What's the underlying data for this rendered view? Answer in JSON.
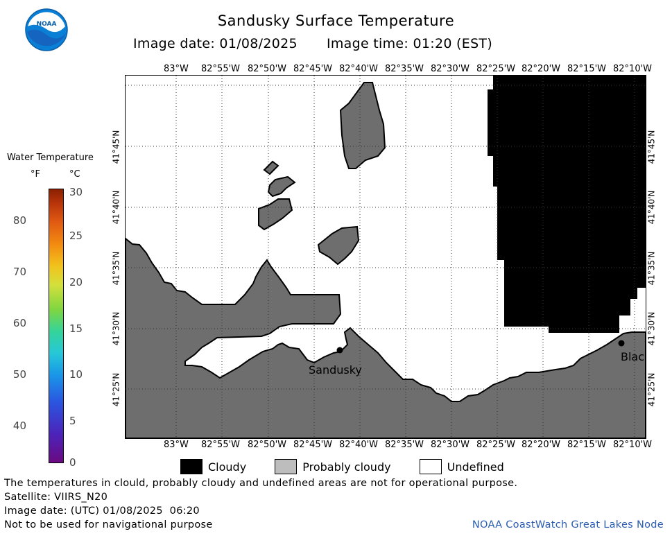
{
  "header": {
    "title": "Sandusky Surface Temperature",
    "image_date": "Image date: 01/08/2025",
    "image_time": "Image time: 01:20 (EST)"
  },
  "logo": {
    "text": "NOAA",
    "icon": "noaa-logo-icon"
  },
  "legend": {
    "title": "Water Temperature",
    "unit_f": "°F",
    "unit_c": "°C",
    "f_ticks": [
      "80",
      "70",
      "60",
      "50",
      "40"
    ],
    "c_ticks": [
      "30",
      "25",
      "20",
      "15",
      "10",
      "5",
      "0"
    ]
  },
  "map": {
    "lon_labels": [
      "83°W",
      "82°55'W",
      "82°50'W",
      "82°45'W",
      "82°40'W",
      "82°35'W",
      "82°30'W",
      "82°25'W",
      "82°20'W",
      "82°15'W",
      "82°10'W"
    ],
    "lat_labels": [
      "41°45'N",
      "41°40'N",
      "41°35'N",
      "41°30'N",
      "41°25'N"
    ],
    "cities": [
      {
        "name": "Sandusky"
      },
      {
        "name": "Blac"
      }
    ],
    "colors": {
      "cloudy": "#000000",
      "probably_cloudy": "#6e6e6e",
      "undefined": "#ffffff",
      "probably_cloudy_legend": "#bdbdbd"
    }
  },
  "map_legend": {
    "cloudy": "Cloudy",
    "probably_cloudy": "Probably cloudy",
    "undefined": "Undefined"
  },
  "footer": {
    "line1": "The temperatures in clould, probably cloudy and undefined areas are not for operational purpose.",
    "line2": "Satellite: VIIRS_N20",
    "line3": "Image date: (UTC) 01/08/2025  06:20",
    "line4": "Not to be used for navigational purpose",
    "credit": "NOAA CoastWatch Great Lakes Node"
  }
}
